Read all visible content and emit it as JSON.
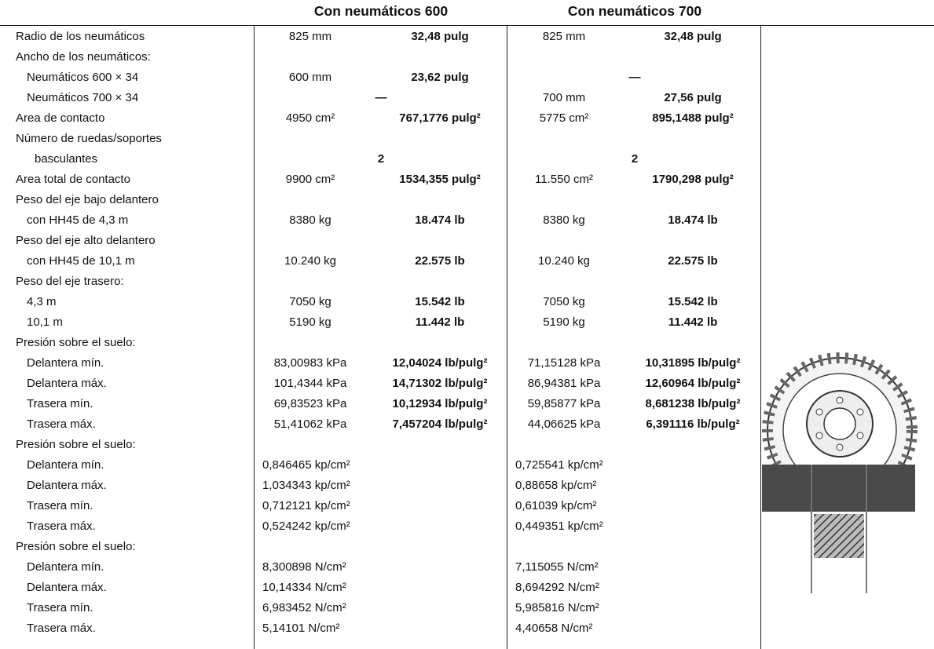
{
  "header": {
    "col600": "Con neumáticos 600",
    "col700": "Con neumáticos 700"
  },
  "rows": [
    {
      "label": "Radio de los neumáticos",
      "c600": [
        "825 mm",
        "32,48 pulg"
      ],
      "c700": [
        "825 mm",
        "32,48 pulg"
      ]
    },
    {
      "label": "Ancho de los neumáticos:"
    },
    {
      "label": "Neumáticos 600 × 34",
      "c600": [
        "600 mm",
        "23,62 pulg"
      ],
      "c700": [
        "—"
      ]
    },
    {
      "label": "Neumáticos 700 × 34",
      "c600": [
        "—"
      ],
      "c700": [
        "700 mm",
        "27,56 pulg"
      ]
    },
    {
      "label": "Area de contacto",
      "c600": [
        "4950 cm²",
        "767,1776 pulg²"
      ],
      "c700": [
        "5775 cm²",
        "895,1488 pulg²"
      ]
    },
    {
      "label": "Número de ruedas/soportes"
    },
    {
      "label": "basculantes",
      "c600": [
        "2"
      ],
      "c700": [
        "2"
      ]
    },
    {
      "label": "Area total de contacto",
      "c600": [
        "9900 cm²",
        "1534,355 pulg²"
      ],
      "c700": [
        "11.550 cm²",
        "1790,298 pulg²"
      ]
    },
    {
      "label": "Peso del eje bajo delantero"
    },
    {
      "label": "con HH45 de 4,3 m",
      "c600": [
        "8380 kg",
        "18.474 lb"
      ],
      "c700": [
        "8380 kg",
        "18.474 lb"
      ]
    },
    {
      "label": "Peso del eje alto delantero"
    },
    {
      "label": "con HH45 de 10,1 m",
      "c600": [
        "10.240 kg",
        "22.575 lb"
      ],
      "c700": [
        "10.240 kg",
        "22.575 lb"
      ]
    },
    {
      "label": "Peso del eje trasero:"
    },
    {
      "label": "4,3 m",
      "c600": [
        "7050 kg",
        "15.542 lb"
      ],
      "c700": [
        "7050 kg",
        "15.542 lb"
      ]
    },
    {
      "label": "10,1 m",
      "c600": [
        "5190 kg",
        "11.442 lb"
      ],
      "c700": [
        "5190 kg",
        "11.442 lb"
      ]
    },
    {
      "label": "Presión sobre el suelo:"
    },
    {
      "label": "Delantera mín.",
      "c600": [
        "83,00983 kPa",
        "12,04024 lb/pulg²"
      ],
      "c700": [
        "71,15128 kPa",
        "10,31895 lb/pulg²"
      ]
    },
    {
      "label": "Delantera máx.",
      "c600": [
        "101,4344 kPa",
        "14,71302 lb/pulg²"
      ],
      "c700": [
        "86,94381 kPa",
        "12,60964 lb/pulg²"
      ]
    },
    {
      "label": "Trasera mín.",
      "c600": [
        "69,83523 kPa",
        "10,12934 lb/pulg²"
      ],
      "c700": [
        "59,85877 kPa",
        "8,681238 lb/pulg²"
      ]
    },
    {
      "label": "Trasera máx.",
      "c600": [
        "51,41062 kPa",
        "7,457204 lb/pulg²"
      ],
      "c700": [
        "44,06625 kPa",
        "6,391116 lb/pulg²"
      ]
    },
    {
      "label": "Presión sobre el suelo:"
    },
    {
      "label": "Delantera mín.",
      "c600": [
        "0,846465 kp/cm²"
      ],
      "c700": [
        "0,725541 kp/cm²"
      ]
    },
    {
      "label": "Delantera máx.",
      "c600": [
        "1,034343 kp/cm²"
      ],
      "c700": [
        "0,88658 kp/cm²"
      ]
    },
    {
      "label": "Trasera mín.",
      "c600": [
        "0,712121 kp/cm²"
      ],
      "c700": [
        "0,61039 kp/cm²"
      ]
    },
    {
      "label": "Trasera máx.",
      "c600": [
        "0,524242 kp/cm²"
      ],
      "c700": [
        "0,449351 kp/cm²"
      ]
    },
    {
      "label": "Presión sobre el suelo:"
    },
    {
      "label": "Delantera mín.",
      "c600": [
        "8,300898 N/cm²"
      ],
      "c700": [
        "7,115055 N/cm²"
      ]
    },
    {
      "label": "Delantera máx.",
      "c600": [
        "10,14334 N/cm²"
      ],
      "c700": [
        "8,694292 N/cm²"
      ]
    },
    {
      "label": "Trasera mín.",
      "c600": [
        "6,983452 N/cm²"
      ],
      "c700": [
        "5,985816 N/cm²"
      ]
    },
    {
      "label": "Trasera máx.",
      "c600": [
        "5,14101 N/cm²"
      ],
      "c700": [
        "4,40658 N/cm²"
      ]
    }
  ]
}
